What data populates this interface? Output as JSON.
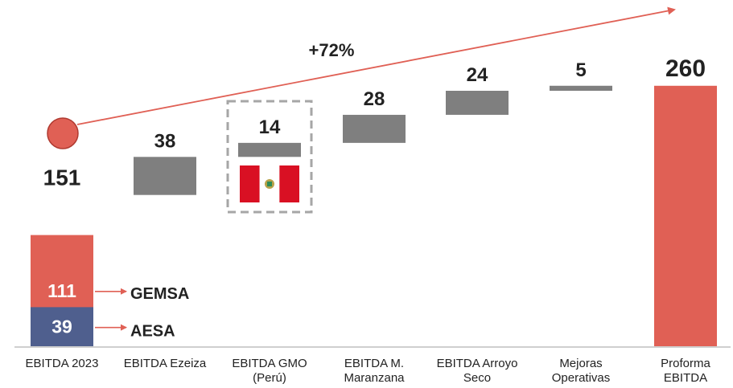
{
  "chart_data": {
    "type": "bar",
    "subtype": "waterfall",
    "categories": [
      "EBITDA 2023",
      "EBITDA Ezeiza",
      "EBITDA GMO\n(Perú)",
      "EBITDA M.\nMaranzana",
      "EBITDA Arroyo\nSeco",
      "Mejoras\nOperativas",
      "Proforma\nEBITDA"
    ],
    "values": [
      151,
      38,
      14,
      28,
      24,
      5,
      260
    ],
    "data_labels": [
      "151",
      "38",
      "14",
      "28",
      "24",
      "5",
      "260"
    ],
    "start_bar_breakdown": [
      {
        "name": "GEMSA",
        "value": 111,
        "label": "111",
        "color": "#e06055"
      },
      {
        "name": "AESA",
        "value": 39,
        "label": "39",
        "color": "#4f5f8e"
      }
    ],
    "growth_label": "+72%",
    "ylim": [
      0,
      280
    ],
    "grid": false,
    "colors": {
      "total": "#e06055",
      "increment": "#7f7f7f",
      "aesa": "#4f5f8e",
      "arrow": "#e06055",
      "text": "#222222"
    },
    "annotations": {
      "flag": "peru-flag-icon",
      "dashed_box": "EBITDA GMO (Perú)"
    }
  }
}
